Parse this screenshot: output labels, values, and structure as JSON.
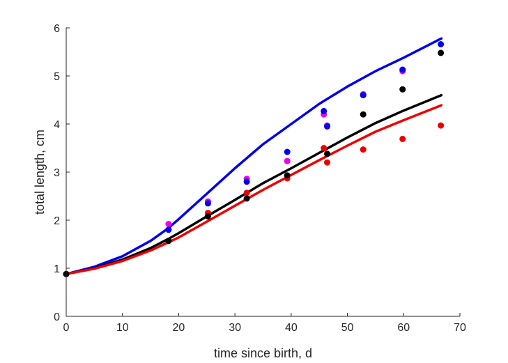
{
  "chart_data": {
    "type": "scatter",
    "title": "",
    "xlabel": "time since birth, d",
    "ylabel": "total length, cm",
    "xlim": [
      0,
      70
    ],
    "ylim": [
      0,
      6
    ],
    "xticks": [
      "0",
      "10",
      "20",
      "30",
      "40",
      "50",
      "60",
      "70"
    ],
    "yticks": [
      "0",
      "1",
      "2",
      "3",
      "4",
      "5",
      "6"
    ],
    "grid": false,
    "legend": "none",
    "lines": [
      {
        "color": "#0000ee",
        "x": [
          0,
          5,
          10,
          15,
          18,
          20,
          25,
          30,
          35,
          40,
          45,
          50,
          55,
          60,
          66.7
        ],
        "y": [
          0.88,
          1.03,
          1.25,
          1.57,
          1.82,
          2.02,
          2.55,
          3.08,
          3.58,
          4.0,
          4.42,
          4.78,
          5.1,
          5.38,
          5.78
        ]
      },
      {
        "color": "#000000",
        "x": [
          0,
          5,
          10,
          15,
          18,
          20,
          25,
          30,
          35,
          40,
          45,
          50,
          55,
          60,
          66.7
        ],
        "y": [
          0.88,
          1.0,
          1.18,
          1.42,
          1.6,
          1.73,
          2.08,
          2.42,
          2.77,
          3.08,
          3.4,
          3.72,
          4.02,
          4.28,
          4.6
        ]
      },
      {
        "color": "#ee0000",
        "x": [
          0,
          5,
          10,
          15,
          18,
          20,
          25,
          30,
          35,
          40,
          45,
          50,
          55,
          60,
          66.7
        ],
        "y": [
          0.88,
          0.99,
          1.15,
          1.37,
          1.53,
          1.64,
          1.97,
          2.3,
          2.63,
          2.94,
          3.25,
          3.55,
          3.84,
          4.08,
          4.39
        ]
      }
    ],
    "points": [
      {
        "color": "#ee0000",
        "x": [
          0,
          18.2,
          25.2,
          32.1,
          39.3,
          45.8,
          46.4,
          52.8,
          59.8,
          66.6
        ],
        "y": [
          0.88,
          1.57,
          2.15,
          2.57,
          2.87,
          3.5,
          3.2,
          3.47,
          3.69,
          3.97
        ]
      },
      {
        "color": "#ee00ee",
        "x": [
          18.2,
          25.2,
          32.1,
          39.3,
          45.8,
          46.4,
          52.8,
          59.8
        ],
        "y": [
          1.92,
          2.39,
          2.86,
          3.23,
          4.2,
          3.97,
          4.62,
          5.1
        ]
      },
      {
        "color": "#0000ee",
        "x": [
          18.2,
          25.2,
          32.1,
          39.3,
          45.8,
          46.4,
          52.8,
          59.8,
          66.6
        ],
        "y": [
          1.8,
          2.35,
          2.8,
          3.42,
          4.27,
          3.95,
          4.6,
          5.13,
          5.66
        ]
      },
      {
        "color": "#000000",
        "x": [
          0,
          18.2,
          25.2,
          32.1,
          39.3,
          46.4,
          52.8,
          59.8,
          66.6
        ],
        "y": [
          0.88,
          1.57,
          2.08,
          2.45,
          2.93,
          3.38,
          4.2,
          4.72,
          5.48
        ]
      }
    ]
  }
}
